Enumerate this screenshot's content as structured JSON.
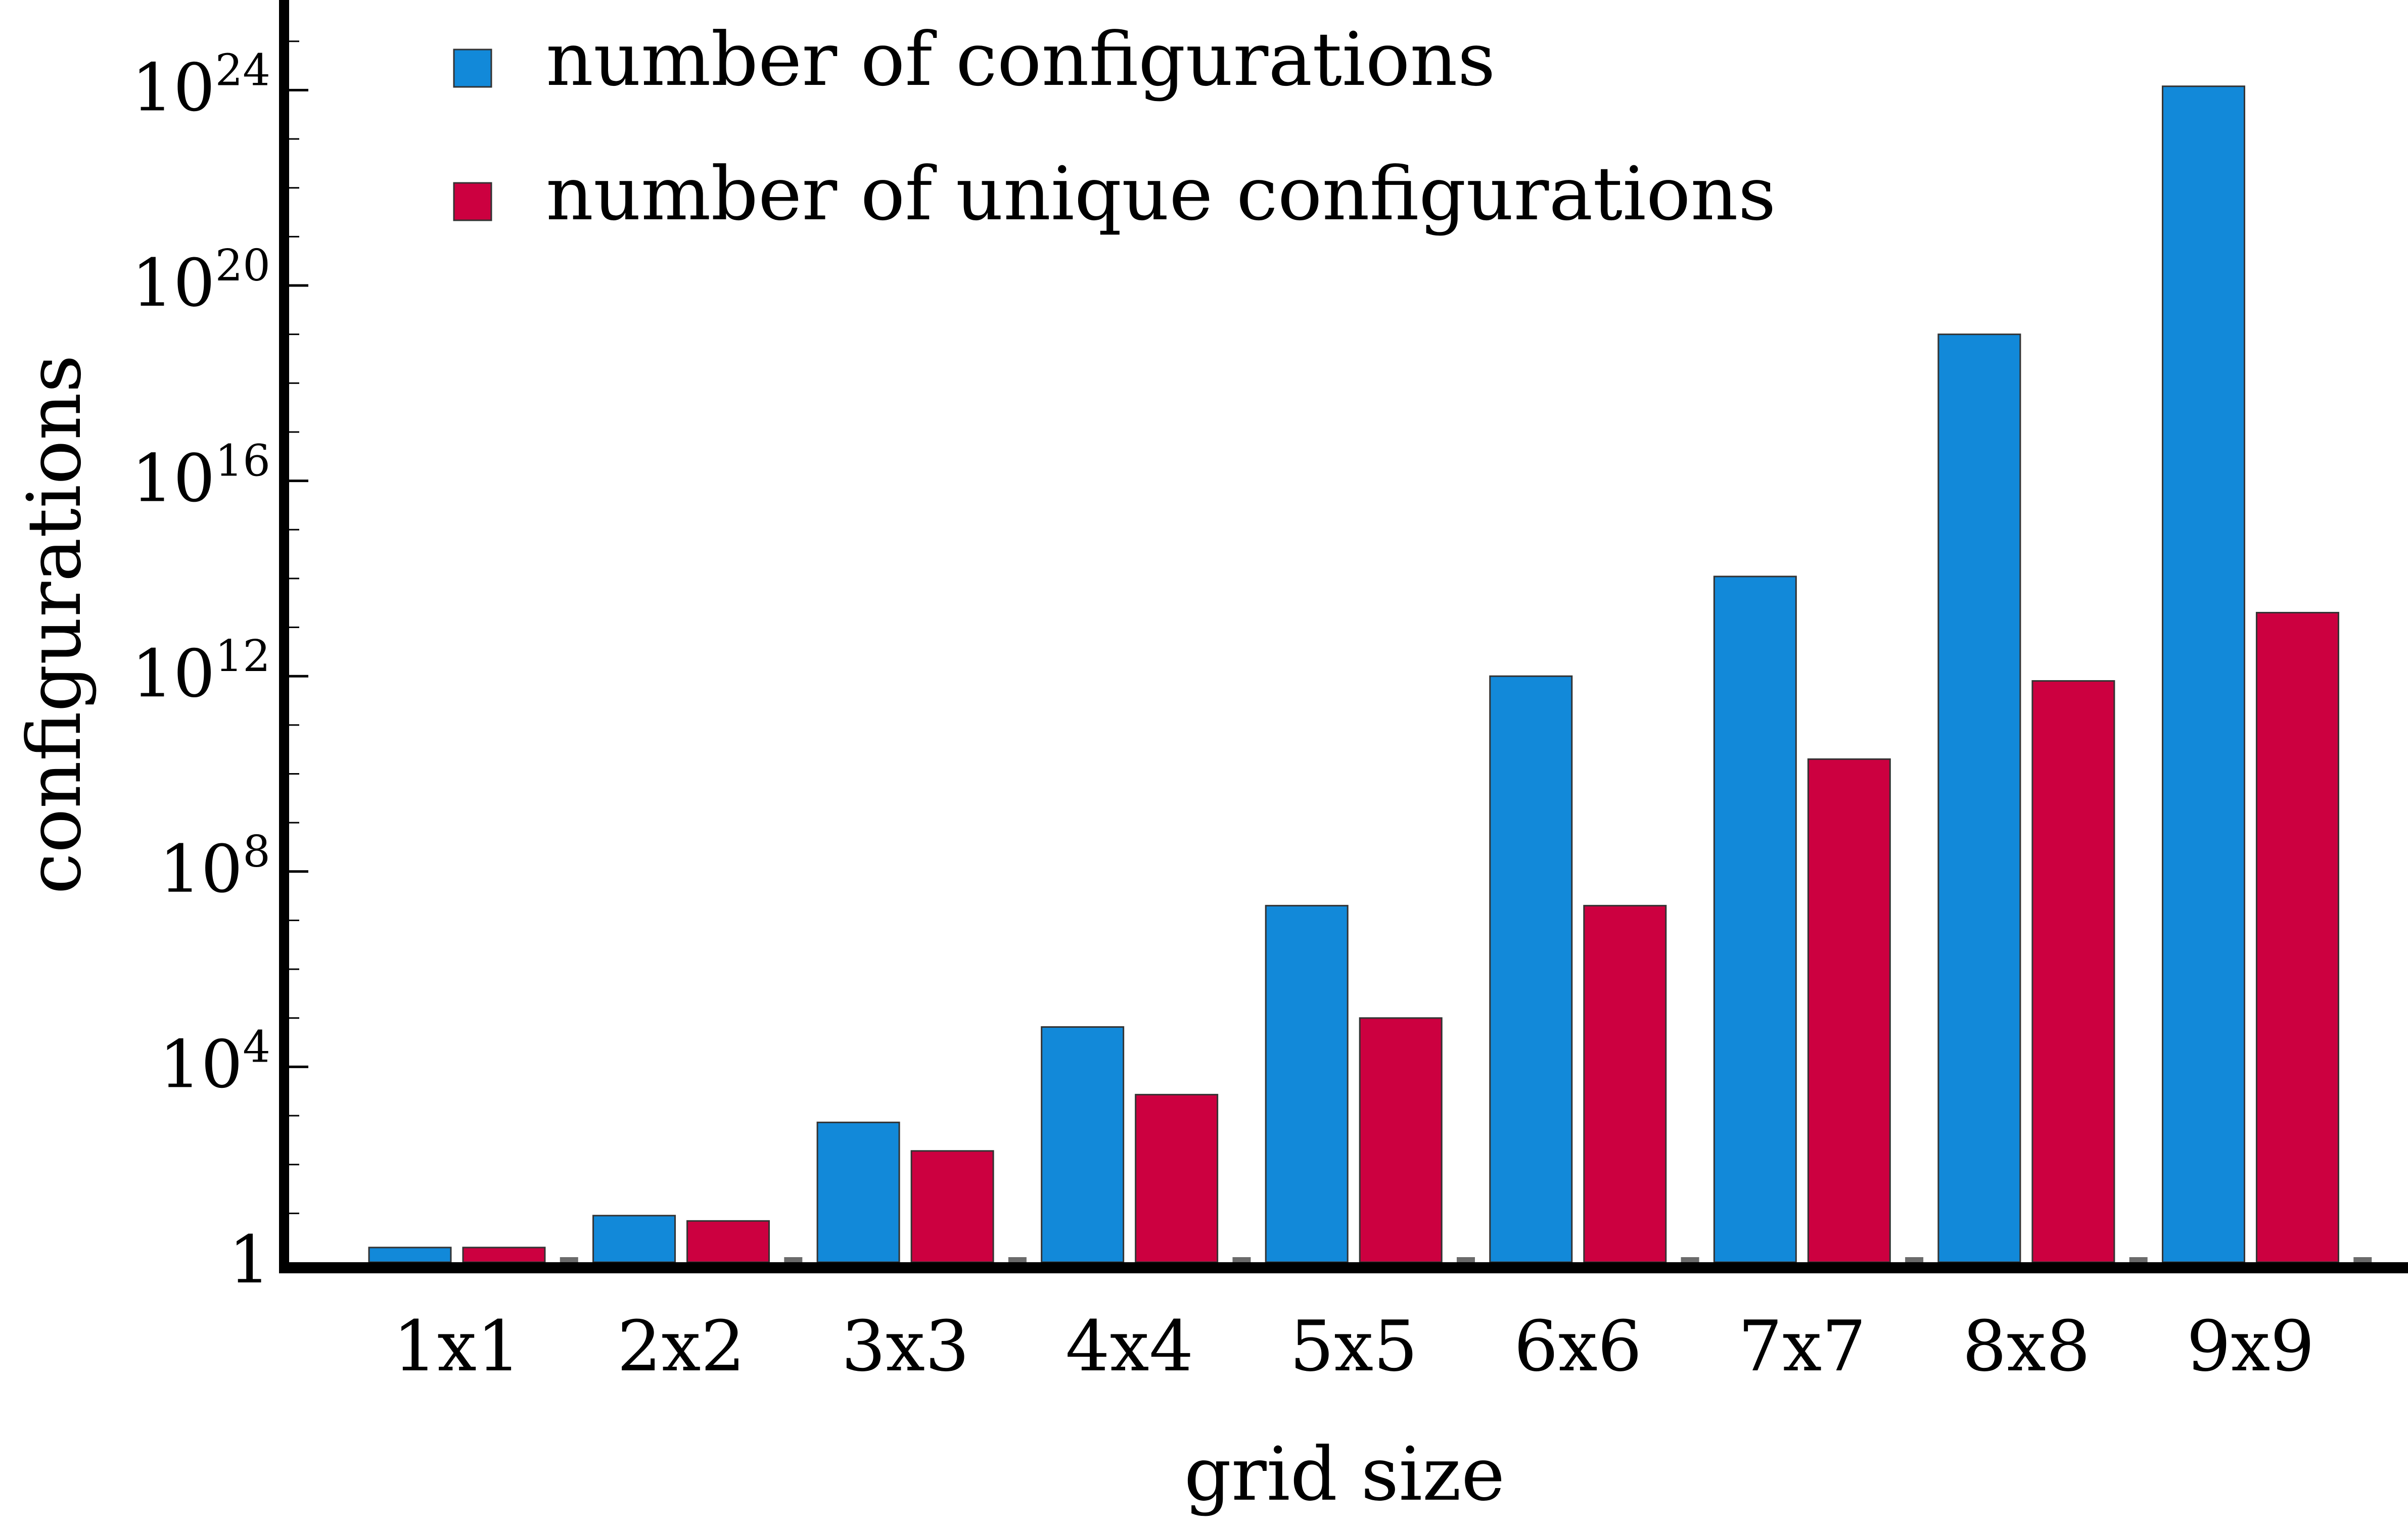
{
  "chart_data": {
    "type": "bar",
    "xlabel": "grid size",
    "ylabel": "configurations",
    "categories": [
      "1x1",
      "2x2",
      "3x3",
      "4x4",
      "5x5",
      "6x6",
      "7x7",
      "8x8",
      "9x9"
    ],
    "y_scale": "log",
    "ylim_log10": [
      0,
      25.5
    ],
    "y_ticks": [
      {
        "base": "1",
        "exp": ""
      },
      {
        "base": "10",
        "exp": "4"
      },
      {
        "base": "10",
        "exp": "8"
      },
      {
        "base": "10",
        "exp": "12"
      },
      {
        "base": "10",
        "exp": "16"
      },
      {
        "base": "10",
        "exp": "20"
      },
      {
        "base": "10",
        "exp": "24"
      }
    ],
    "y_tick_log10": [
      0,
      4,
      8,
      12,
      16,
      20,
      24
    ],
    "series": [
      {
        "name": "number of configurations",
        "color": "#1289d9",
        "values": [
          2,
          9,
          729,
          65536,
          20000000,
          1000000000000,
          110000000000000.0,
          1e+19,
          1.2e+24
        ]
      },
      {
        "name": "number of unique configurations",
        "color": "#cc0040",
        "values": [
          2,
          7,
          190,
          2700,
          100000,
          20000000,
          20000000000,
          800000000000,
          20000000000000
        ]
      }
    ],
    "legend": "top-left",
    "grid": false
  }
}
